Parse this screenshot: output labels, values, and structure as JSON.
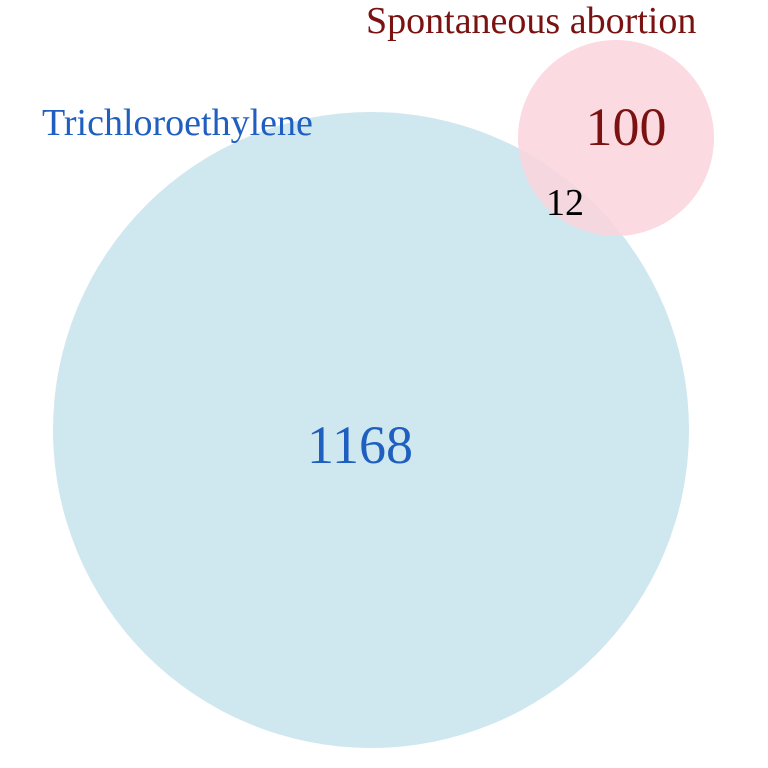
{
  "venn": {
    "set_a": {
      "label": "Trichloroethylene",
      "only_count": "1168",
      "fill_color": "#cfe7ee",
      "text_color": "#1f5fbf"
    },
    "set_b": {
      "label": "Spontaneous abortion",
      "only_count": "100",
      "fill_color": "#fbd3dc",
      "text_color": "#7a1212"
    },
    "intersection": {
      "count": "12",
      "text_color": "#000000"
    }
  }
}
